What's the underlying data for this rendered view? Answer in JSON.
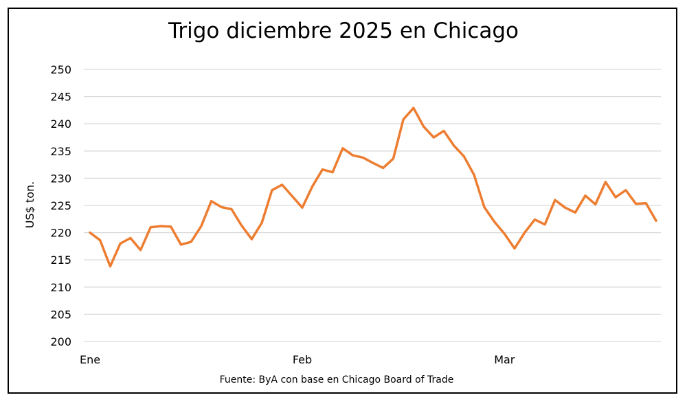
{
  "chart_data": {
    "type": "line",
    "title": "Trigo diciembre 2025 en Chicago",
    "ylabel": "US$ ton.",
    "source": "Fuente: ByA con base en Chicago Board of Trade",
    "ylim": [
      200,
      250
    ],
    "yticks": [
      200,
      205,
      210,
      215,
      220,
      225,
      230,
      235,
      240,
      245,
      250
    ],
    "ytick_labels": [
      "200",
      "205",
      "210",
      "215",
      "220",
      "225",
      "230",
      "235",
      "240",
      "245",
      "250"
    ],
    "xtick_labels": [
      {
        "label": "Ene",
        "index": 0
      },
      {
        "label": "Feb",
        "index": 21
      },
      {
        "label": "Mar",
        "index": 41
      }
    ],
    "grid": true,
    "line_color": "#ED7D31",
    "series": [
      {
        "values": [
          220.0,
          218.6,
          213.8,
          218.0,
          219.0,
          216.8,
          221.0,
          221.2,
          221.1,
          217.8,
          218.3,
          221.2,
          225.8,
          224.7,
          224.3,
          221.3,
          218.8,
          221.8,
          227.8,
          228.8,
          226.7,
          224.6,
          228.5,
          231.6,
          231.1,
          235.5,
          234.2,
          233.8,
          232.8,
          231.9,
          233.6,
          240.8,
          242.9,
          239.5,
          237.5,
          238.7,
          236.0,
          234.0,
          230.6,
          224.7,
          222.0,
          219.8,
          217.1,
          220.0,
          222.4,
          221.5,
          226.0,
          224.6,
          223.7,
          226.8,
          225.2,
          229.3,
          226.5,
          227.8,
          225.3,
          225.4,
          222.2
        ]
      }
    ]
  }
}
